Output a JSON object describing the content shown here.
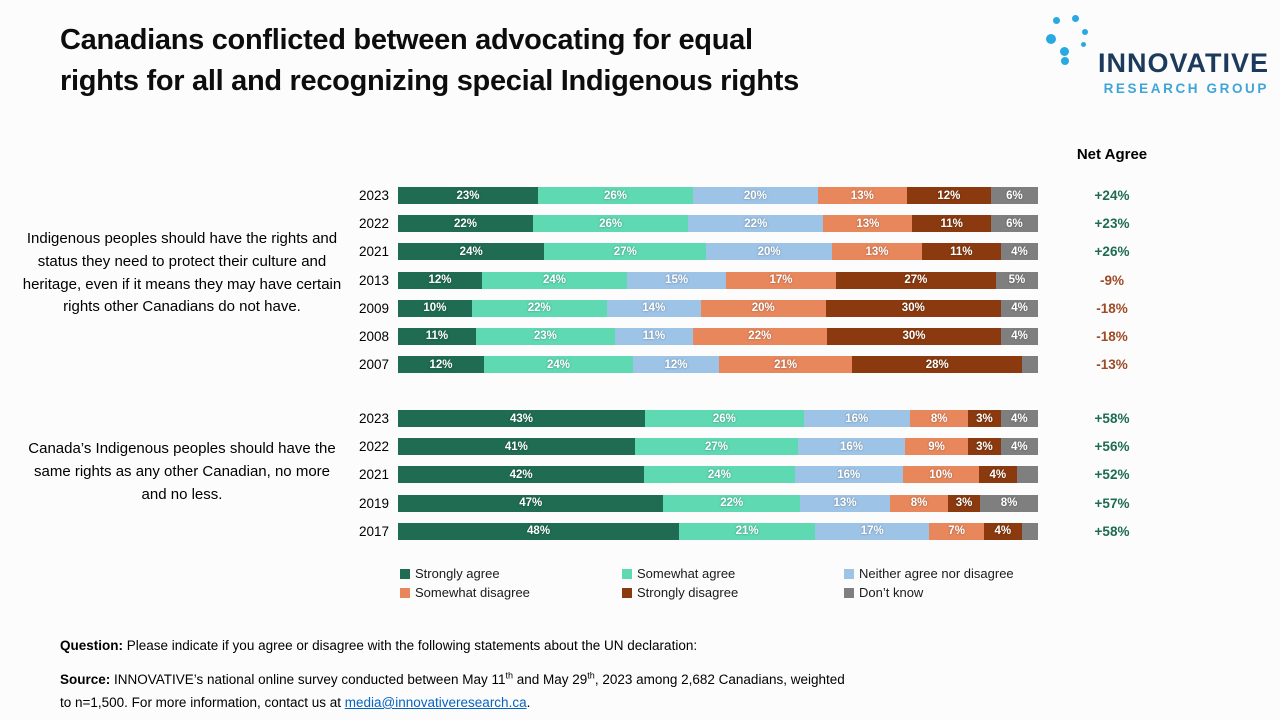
{
  "title": "Canadians conflicted between advocating for equal\nrights for all and recognizing special Indigenous rights",
  "logo": {
    "line1": "INNOVATIVE",
    "line2": "RESEARCH GROUP"
  },
  "net_agree_header": "Net Agree",
  "chart_data": {
    "type": "bar",
    "orientation": "horizontal_stacked",
    "unit": "percent",
    "xlim": [
      0,
      100
    ],
    "legend_position": "bottom",
    "series": [
      "Strongly agree",
      "Somewhat agree",
      "Neither agree nor disagree",
      "Somewhat disagree",
      "Strongly disagree",
      "Don’t know"
    ],
    "colors": [
      "#1F6C52",
      "#5ED9B2",
      "#9DC3E6",
      "#E8875C",
      "#8A3A0E",
      "#7F7F7F"
    ],
    "groups": [
      {
        "statement": "Indigenous peoples should have the rights and status they need to protect their culture and heritage, even if it means they may have certain rights other Canadians do not have.",
        "rows": [
          {
            "year": "2023",
            "values": [
              23,
              26,
              20,
              13,
              12,
              6
            ],
            "labels": [
              "23%",
              "26%",
              "20%",
              "13%",
              "12%",
              "6%"
            ],
            "net": "+24%",
            "net_sign": "pos"
          },
          {
            "year": "2022",
            "values": [
              22,
              26,
              22,
              13,
              11,
              6
            ],
            "labels": [
              "22%",
              "26%",
              "22%",
              "13%",
              "11%",
              "6%"
            ],
            "net": "+23%",
            "net_sign": "pos"
          },
          {
            "year": "2021",
            "values": [
              24,
              27,
              20,
              13,
              11,
              4
            ],
            "labels": [
              "24%",
              "27%",
              "20%",
              "13%",
              "11%",
              "4%"
            ],
            "net": "+26%",
            "net_sign": "pos"
          },
          {
            "year": "2013",
            "values": [
              12,
              24,
              15,
              17,
              27,
              5
            ],
            "labels": [
              "12%",
              "24%",
              "15%",
              "17%",
              "27%",
              "5%"
            ],
            "net": "-9%",
            "net_sign": "neg"
          },
          {
            "year": "2009",
            "values": [
              10,
              22,
              14,
              20,
              30,
              4
            ],
            "labels": [
              "10%",
              "22%",
              "14%",
              "20%",
              "30%",
              "4%"
            ],
            "net": "-18%",
            "net_sign": "neg"
          },
          {
            "year": "2008",
            "values": [
              11,
              23,
              11,
              22,
              30,
              4
            ],
            "labels": [
              "11%",
              "23%",
              "11%",
              "22%",
              "30%",
              "4%"
            ],
            "net": "-18%",
            "net_sign": "neg"
          },
          {
            "year": "2007",
            "values": [
              12,
              24,
              12,
              21,
              28,
              3
            ],
            "labels": [
              "12%",
              "24%",
              "12%",
              "21%",
              "28%",
              ""
            ],
            "net": "-13%",
            "net_sign": "neg"
          }
        ]
      },
      {
        "statement": "Canada’s Indigenous peoples should have the same rights as any other Canadian, no more and no less.",
        "rows": [
          {
            "year": "2023",
            "values": [
              43,
              26,
              16,
              8,
              3,
              4
            ],
            "labels": [
              "43%",
              "26%",
              "16%",
              "8%",
              "3%",
              "4%"
            ],
            "net": "+58%",
            "net_sign": "pos"
          },
          {
            "year": "2022",
            "values": [
              41,
              27,
              16,
              9,
              3,
              4
            ],
            "labels": [
              "41%",
              "27%",
              "16%",
              "9%",
              "3%",
              "4%"
            ],
            "net": "+56%",
            "net_sign": "pos"
          },
          {
            "year": "2021",
            "values": [
              42,
              24,
              16,
              10,
              4,
              4
            ],
            "labels": [
              "42%",
              "24%",
              "16%",
              "10%",
              "4%",
              ""
            ],
            "net": "+52%",
            "net_sign": "pos"
          },
          {
            "year": "2019",
            "values": [
              47,
              22,
              13,
              8,
              3,
              8
            ],
            "labels": [
              "47%",
              "22%",
              "13%",
              "8%",
              "3%",
              "8%"
            ],
            "net": "+57%",
            "net_sign": "pos"
          },
          {
            "year": "2017",
            "values": [
              48,
              21,
              17,
              7,
              4,
              3
            ],
            "labels": [
              "48%",
              "21%",
              "17%",
              "7%",
              "4%",
              ""
            ],
            "net": "+58%",
            "net_sign": "pos"
          }
        ]
      }
    ]
  },
  "legend": {
    "items": [
      {
        "label": "Strongly agree",
        "color": "#1F6C52"
      },
      {
        "label": "Somewhat agree",
        "color": "#5ED9B2"
      },
      {
        "label": "Neither agree nor disagree",
        "color": "#9DC3E6"
      },
      {
        "label": "Somewhat disagree",
        "color": "#E8875C"
      },
      {
        "label": "Strongly disagree",
        "color": "#8A3A0E"
      },
      {
        "label": "Don’t know",
        "color": "#7F7F7F"
      }
    ]
  },
  "footer": {
    "question_label": "Question:",
    "question_text": " Please indicate if you agree or disagree with the following statements about the UN declaration:",
    "source_label": "Source:",
    "source_part1": " INNOVATIVE’s national online survey conducted between May 11",
    "source_sup1": "th",
    "source_part2": " and May 29",
    "source_sup2": "th",
    "source_part3": ", 2023 among 2,682 Canadians, weighted to n=1,500. For more information, contact us at ",
    "source_link": "media@innovativeresearch.ca",
    "source_part4": "."
  },
  "theme": {
    "net_positive_color": "#1E6B52",
    "net_negative_color": "#9E4A26",
    "background": "#FCFCFC",
    "logo_navy": "#1B3A5C",
    "logo_blue": "#3FA5D8",
    "logo_dot_blue": "#29A9E1",
    "link_color": "#0563C1"
  }
}
